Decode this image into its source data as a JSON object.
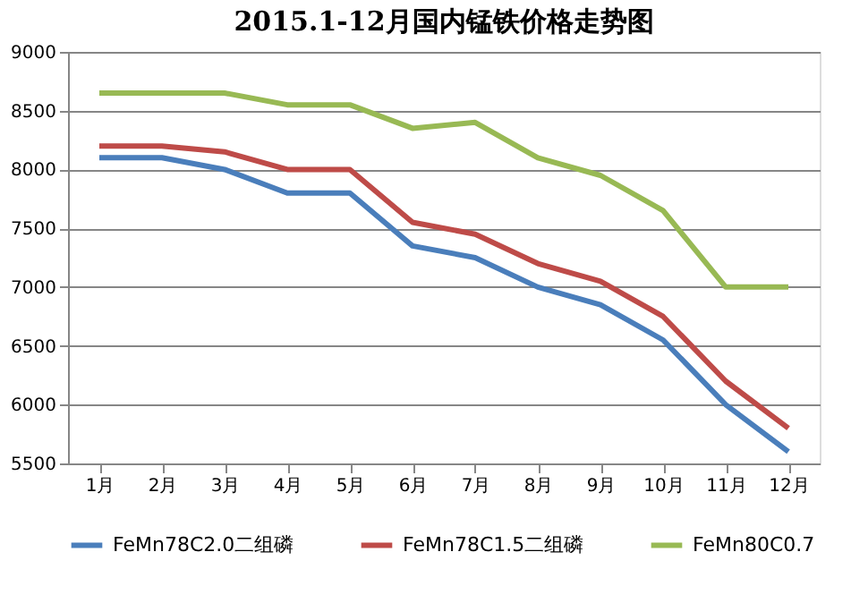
{
  "chart_data": {
    "type": "line",
    "title": "2015.1-12月国内锰铁价格走势图",
    "categories": [
      "1月",
      "2月",
      "3月",
      "4月",
      "5月",
      "6月",
      "7月",
      "8月",
      "9月",
      "10月",
      "11月",
      "12月"
    ],
    "series": [
      {
        "name": "FeMn78C2.0二组磷",
        "color": "#4a7ebb",
        "values": [
          8100,
          8100,
          8000,
          7800,
          7800,
          7350,
          7250,
          7000,
          6850,
          6550,
          6000,
          5600
        ]
      },
      {
        "name": "FeMn78C1.5二组磷",
        "color": "#be4b48",
        "values": [
          8200,
          8200,
          8150,
          8000,
          8000,
          7550,
          7450,
          7200,
          7050,
          6750,
          6200,
          5800
        ]
      },
      {
        "name": "FeMn80C0.7",
        "color": "#98b954",
        "values": [
          8650,
          8650,
          8650,
          8550,
          8550,
          8350,
          8400,
          8100,
          7950,
          7650,
          7000,
          7000
        ]
      }
    ],
    "ylim": [
      5500,
      9000
    ],
    "yticks": [
      5500,
      6000,
      6500,
      7000,
      7500,
      8000,
      8500,
      9000
    ],
    "grid": "y",
    "legend": "bottom",
    "marker": "none",
    "line_style": "solid"
  }
}
